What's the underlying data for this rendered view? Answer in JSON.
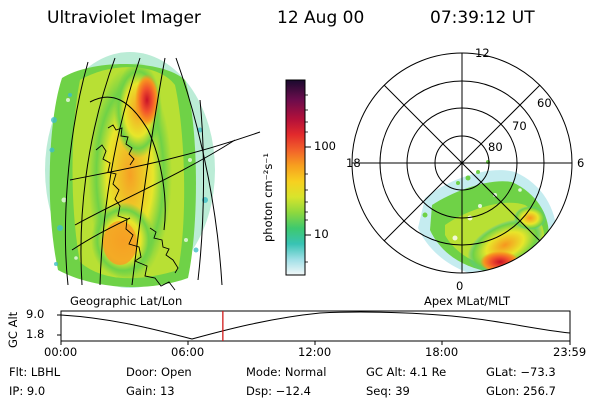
{
  "header": {
    "instrument": "Ultraviolet Imager",
    "date": "12 Aug 00",
    "time": "07:39:12 UT"
  },
  "left_panel": {
    "caption": "Geographic Lat/Lon"
  },
  "right_panel": {
    "caption": "Apex MLat/MLT",
    "mlt_labels": {
      "top": "12",
      "left": "18",
      "right": "6",
      "bottom": "0"
    },
    "lat_labels": [
      "60",
      "70",
      "80"
    ]
  },
  "colorbar": {
    "unit": "photon cm⁻²s⁻¹",
    "ticks": [
      "100",
      "10"
    ],
    "colors": [
      "#1a0a2e",
      "#5b0a4a",
      "#a0103c",
      "#d81e2e",
      "#f2522c",
      "#f7961f",
      "#f7c520",
      "#e8e62a",
      "#b8e034",
      "#6fd247",
      "#3cc98a",
      "#3fbfc7",
      "#9fdfe6",
      "#e8f4f6"
    ]
  },
  "altitude_plot": {
    "ylabel": "GC Alt",
    "yticks": [
      "9.0",
      "1.8"
    ],
    "xticks": [
      "00:00",
      "06:00",
      "12:00",
      "18:00",
      "23:59"
    ],
    "current_fraction": 0.318,
    "marker_color": "#d01818"
  },
  "info": {
    "filter": "Flt: LBHL",
    "ip": "IP:  9.0",
    "door": "Door: Open",
    "gain": "Gain: 13",
    "mode": "Mode: Normal",
    "dsp": "Dsp:  −12.4",
    "gc_alt": "GC Alt: 4.1 Re",
    "seq": "Seq: 39",
    "glat": "GLat: −73.3",
    "glon": "GLon: 256.7"
  }
}
